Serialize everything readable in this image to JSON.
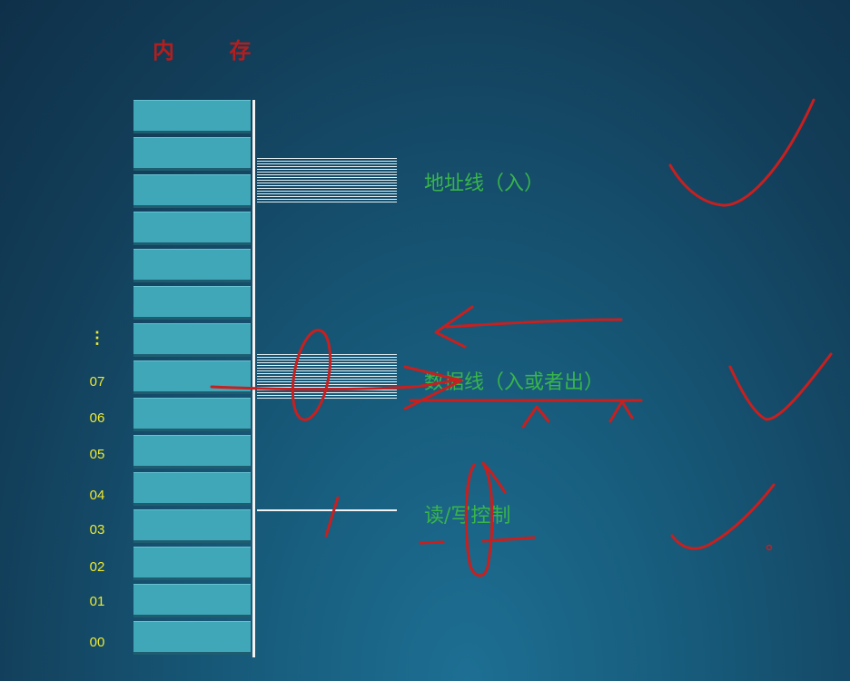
{
  "diagram": {
    "title": "内 存",
    "address_labels": {
      "ellipsis": "⋮",
      "a07": "07",
      "a06": "06",
      "a05": "05",
      "a04": "04",
      "a03": "03",
      "a02": "02",
      "a01": "01",
      "a00": "00"
    },
    "buses": {
      "address_line_label": "地址线（入）",
      "data_line_label": "数据线（入或者出）",
      "control_line_label": "读/写控制"
    },
    "colors": {
      "memory_cell": "#3fa7b8",
      "label_green": "#39b54a",
      "address_yellow": "#efe930",
      "annotation_red": "#c81f1f"
    }
  }
}
